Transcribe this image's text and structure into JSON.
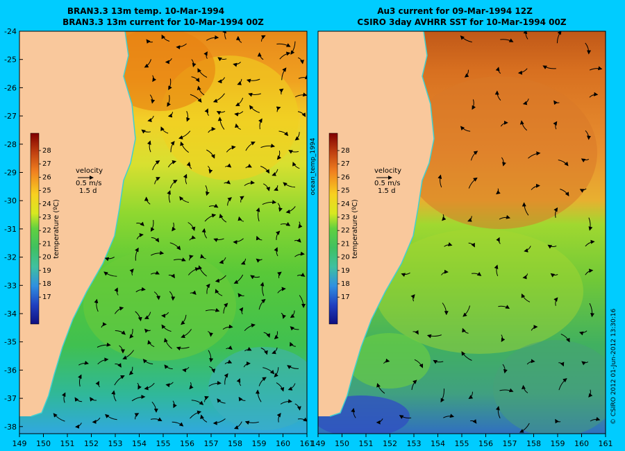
{
  "left_panel": {
    "title_line1": "BRAN3.3 13m temp. 10-Mar-1994",
    "title_line2": "BRAN3.3 13m current for 10-Mar-1994 00Z",
    "velocity_label": "velocity",
    "velocity_scale": "0.5 m/s",
    "velocity_time": "1.5 d",
    "colorbar_label": "temperature (ºC)"
  },
  "right_panel": {
    "title_line1": "Au3 current for 09-Mar-1994 12Z",
    "title_line2": "CSIRO 3day AVHRR SST for 10-Mar-1994 00Z",
    "velocity_label": "velocity",
    "velocity_scale": "0.5 m/s",
    "velocity_time": "1.5 d",
    "colorbar_label": "temperature (ºC)"
  },
  "side_label": "ocean_temp_1994",
  "credit": "© CSIRO 2012  01-Jun-2012 13:30:16",
  "lat_ticks": [
    "-24",
    "-25",
    "-26",
    "-27",
    "-28",
    "-29",
    "-30",
    "-31",
    "-32",
    "-33",
    "-34",
    "-35",
    "-36",
    "-37",
    "-38"
  ],
  "lon_ticks": [
    "149",
    "150",
    "151",
    "152",
    "153",
    "154",
    "155",
    "156",
    "157",
    "158",
    "159",
    "160",
    "161"
  ],
  "colorbar_ticks": [
    "28",
    "27",
    "26",
    "25",
    "24",
    "23",
    "22",
    "21",
    "20",
    "19",
    "18",
    "17"
  ],
  "colors": {
    "background": "#00ccff",
    "land": "#f9c89c",
    "warm": "#e07a10",
    "mid": "#f0e030",
    "cool": "#40c040",
    "cold": "#2080ff",
    "coast_line": "#40d0d0"
  }
}
